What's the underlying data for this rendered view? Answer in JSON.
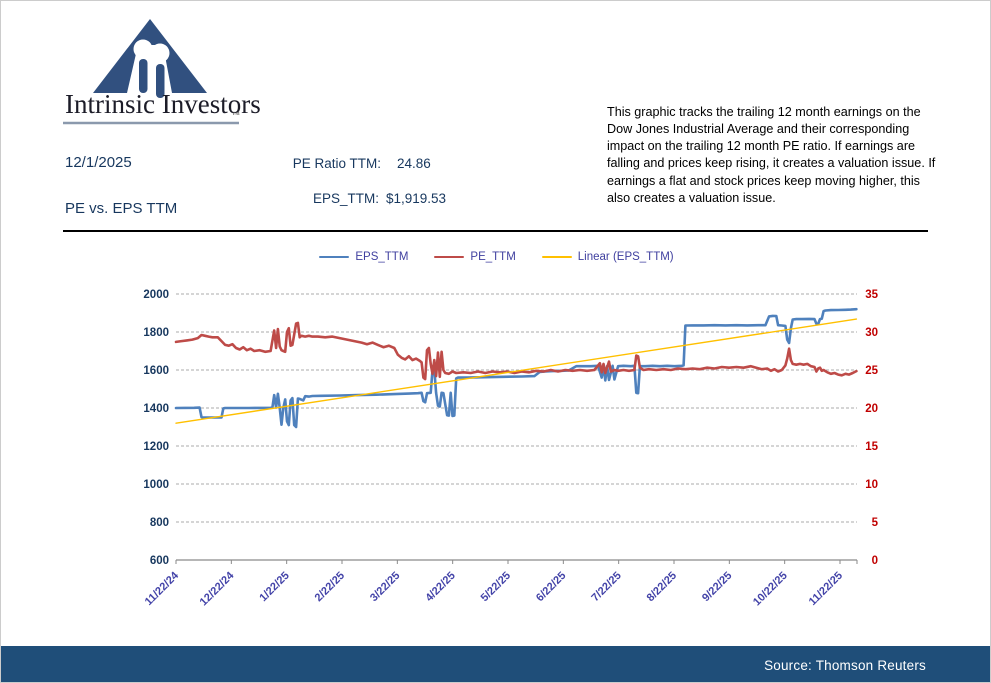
{
  "logo": {
    "brand": "Intrinsic Investors",
    "tm": "™",
    "accent_color": "#31507F"
  },
  "header": {
    "date": "12/1/2025",
    "report_title": "PE vs. EPS TTM",
    "pe_label": "PE Ratio TTM:",
    "pe_value": "24.86",
    "eps_label": "EPS_TTM:",
    "eps_value": "$1,919.53",
    "description": "This graphic tracks the trailing 12 month earnings on the Dow Jones Industrial Average and their corresponding impact on the trailing 12 month PE ratio.  If earnings are falling and prices keep rising, it creates a valuation issue.  If earnings a flat and stock prices keep moving higher, this also creates a valuation issue."
  },
  "footer": {
    "source": "Source: Thomson Reuters"
  },
  "chart_data": {
    "type": "line",
    "title": "PE vs. EPS TTM",
    "x_axis": {
      "unit": "date",
      "tick_labels": [
        "11/22/24",
        "12/22/24",
        "1/22/25",
        "2/22/25",
        "3/22/25",
        "4/22/25",
        "5/22/25",
        "6/22/25",
        "7/22/25",
        "8/22/25",
        "9/22/25",
        "10/22/25",
        "11/22/25"
      ],
      "data_start": "11/22/24",
      "data_end": "12/1/25",
      "total_days": 374
    },
    "y_left": {
      "min": 600,
      "max": 2000,
      "step": 200,
      "color": "#17375E",
      "applies_to": "EPS_TTM"
    },
    "y_right": {
      "min": 0,
      "max": 35,
      "step": 5,
      "color": "#C00000",
      "applies_to": "PE_TTM"
    },
    "grid": {
      "show": true,
      "style": "dashed",
      "color": "#ABABAB"
    },
    "legend_position": "top",
    "series": [
      {
        "name": "EPS_TTM",
        "axis": "left",
        "color": "#4F81BD",
        "stroke_width": 2.6,
        "points": [
          [
            0,
            1400
          ],
          [
            10,
            1401
          ],
          [
            13,
            1402
          ],
          [
            14,
            1352
          ],
          [
            15,
            1350
          ],
          [
            25,
            1350
          ],
          [
            26,
            1398
          ],
          [
            27,
            1400
          ],
          [
            40,
            1400
          ],
          [
            52,
            1401
          ],
          [
            53,
            1402
          ],
          [
            54,
            1468
          ],
          [
            55,
            1402
          ],
          [
            56,
            1475
          ],
          [
            57,
            1402
          ],
          [
            58,
            1312
          ],
          [
            59,
            1400
          ],
          [
            60,
            1445
          ],
          [
            61,
            1330
          ],
          [
            62,
            1310
          ],
          [
            63,
            1440
          ],
          [
            64,
            1452
          ],
          [
            65,
            1310
          ],
          [
            66,
            1300
          ],
          [
            67,
            1450
          ],
          [
            68,
            1448
          ],
          [
            70,
            1440
          ],
          [
            71,
            1462
          ],
          [
            73,
            1460
          ],
          [
            75,
            1463
          ],
          [
            80,
            1464
          ],
          [
            90,
            1466
          ],
          [
            100,
            1468
          ],
          [
            110,
            1470
          ],
          [
            120,
            1473
          ],
          [
            128,
            1476
          ],
          [
            133,
            1478
          ],
          [
            135,
            1480
          ],
          [
            136,
            1436
          ],
          [
            137,
            1430
          ],
          [
            138,
            1478
          ],
          [
            140,
            1480
          ],
          [
            141,
            1598
          ],
          [
            142,
            1602
          ],
          [
            143,
            1480
          ],
          [
            144,
            1412
          ],
          [
            145,
            1408
          ],
          [
            146,
            1480
          ],
          [
            147,
            1478
          ],
          [
            149,
            1362
          ],
          [
            150,
            1360
          ],
          [
            151,
            1480
          ],
          [
            152,
            1358
          ],
          [
            153,
            1360
          ],
          [
            154,
            1556
          ],
          [
            155,
            1560
          ],
          [
            160,
            1560
          ],
          [
            170,
            1562
          ],
          [
            180,
            1564
          ],
          [
            190,
            1566
          ],
          [
            197,
            1568
          ],
          [
            200,
            1590
          ],
          [
            203,
            1592
          ],
          [
            207,
            1594
          ],
          [
            212,
            1596
          ],
          [
            216,
            1598
          ],
          [
            220,
            1620
          ],
          [
            228,
            1620
          ],
          [
            232,
            1622
          ],
          [
            234,
            1560
          ],
          [
            235,
            1622
          ],
          [
            236,
            1545
          ],
          [
            237,
            1620
          ],
          [
            238,
            1548
          ],
          [
            240,
            1622
          ],
          [
            241,
            1550
          ],
          [
            243,
            1620
          ],
          [
            246,
            1622
          ],
          [
            250,
            1620
          ],
          [
            252,
            1622
          ],
          [
            253,
            1480
          ],
          [
            254,
            1478
          ],
          [
            255,
            1620
          ],
          [
            258,
            1620
          ],
          [
            262,
            1622
          ],
          [
            266,
            1620
          ],
          [
            270,
            1622
          ],
          [
            274,
            1620
          ],
          [
            278,
            1622
          ],
          [
            279,
            1624
          ],
          [
            280,
            1834
          ],
          [
            284,
            1835
          ],
          [
            290,
            1835
          ],
          [
            296,
            1836
          ],
          [
            302,
            1835
          ],
          [
            308,
            1836
          ],
          [
            314,
            1835
          ],
          [
            320,
            1836
          ],
          [
            324,
            1836
          ],
          [
            326,
            1882
          ],
          [
            328,
            1885
          ],
          [
            330,
            1884
          ],
          [
            331,
            1836
          ],
          [
            333,
            1834
          ],
          [
            335,
            1832
          ],
          [
            336,
            1760
          ],
          [
            337,
            1742
          ],
          [
            338,
            1820
          ],
          [
            339,
            1866
          ],
          [
            341,
            1868
          ],
          [
            344,
            1868
          ],
          [
            348,
            1869
          ],
          [
            351,
            1868
          ],
          [
            352,
            1843
          ],
          [
            353,
            1842
          ],
          [
            354,
            1868
          ],
          [
            355,
            1870
          ],
          [
            356,
            1910
          ],
          [
            357,
            1913
          ],
          [
            360,
            1915
          ],
          [
            364,
            1916
          ],
          [
            368,
            1917
          ],
          [
            371,
            1918
          ],
          [
            374,
            1920
          ]
        ]
      },
      {
        "name": "PE_TTM",
        "axis": "right",
        "color": "#BE4B48",
        "stroke_width": 2.6,
        "points": [
          [
            0,
            28.7
          ],
          [
            3,
            28.8
          ],
          [
            6,
            28.9
          ],
          [
            9,
            29.0
          ],
          [
            12,
            29.2
          ],
          [
            14,
            29.6
          ],
          [
            16,
            29.5
          ],
          [
            18,
            29.4
          ],
          [
            20,
            29.3
          ],
          [
            23,
            29.3
          ],
          [
            25,
            28.8
          ],
          [
            27,
            28.3
          ],
          [
            29,
            28.2
          ],
          [
            31,
            28.4
          ],
          [
            33,
            27.9
          ],
          [
            35,
            27.7
          ],
          [
            37,
            28.0
          ],
          [
            39,
            27.6
          ],
          [
            41,
            27.8
          ],
          [
            43,
            27.5
          ],
          [
            46,
            27.6
          ],
          [
            49,
            27.4
          ],
          [
            52,
            27.5
          ],
          [
            54,
            30.2
          ],
          [
            55,
            27.9
          ],
          [
            56,
            30.4
          ],
          [
            57,
            28.1
          ],
          [
            58,
            27.6
          ],
          [
            59,
            27.5
          ],
          [
            60,
            27.4
          ],
          [
            61,
            30.0
          ],
          [
            62,
            30.5
          ],
          [
            63,
            28.2
          ],
          [
            64,
            28.3
          ],
          [
            66,
            31.1
          ],
          [
            67,
            31.2
          ],
          [
            68,
            29.3
          ],
          [
            69,
            29.5
          ],
          [
            71,
            29.4
          ],
          [
            73,
            29.5
          ],
          [
            75,
            29.4
          ],
          [
            78,
            29.4
          ],
          [
            82,
            29.3
          ],
          [
            86,
            29.4
          ],
          [
            90,
            29.2
          ],
          [
            94,
            29.0
          ],
          [
            98,
            28.8
          ],
          [
            102,
            28.6
          ],
          [
            105,
            28.4
          ],
          [
            108,
            28.6
          ],
          [
            111,
            28.3
          ],
          [
            114,
            28.0
          ],
          [
            117,
            28.2
          ],
          [
            120,
            27.9
          ],
          [
            122,
            27.0
          ],
          [
            124,
            26.6
          ],
          [
            126,
            26.4
          ],
          [
            128,
            26.8
          ],
          [
            130,
            26.3
          ],
          [
            132,
            26.5
          ],
          [
            134,
            26.2
          ],
          [
            135,
            26.0
          ],
          [
            136,
            24.0
          ],
          [
            137,
            23.8
          ],
          [
            138,
            27.6
          ],
          [
            139,
            27.9
          ],
          [
            140,
            25.8
          ],
          [
            141,
            24.5
          ],
          [
            142,
            26.3
          ],
          [
            143,
            24.2
          ],
          [
            144,
            27.3
          ],
          [
            145,
            24.1
          ],
          [
            146,
            27.4
          ],
          [
            147,
            25.0
          ],
          [
            148,
            24.6
          ],
          [
            150,
            24.5
          ],
          [
            152,
            24.8
          ],
          [
            154,
            24.6
          ],
          [
            158,
            24.7
          ],
          [
            162,
            24.6
          ],
          [
            166,
            24.8
          ],
          [
            170,
            24.6
          ],
          [
            174,
            24.8
          ],
          [
            178,
            24.7
          ],
          [
            182,
            24.8
          ],
          [
            186,
            24.6
          ],
          [
            190,
            24.8
          ],
          [
            194,
            24.7
          ],
          [
            198,
            24.9
          ],
          [
            202,
            24.8
          ],
          [
            206,
            25.0
          ],
          [
            210,
            24.8
          ],
          [
            214,
            25.0
          ],
          [
            218,
            24.9
          ],
          [
            222,
            25.0
          ],
          [
            226,
            24.9
          ],
          [
            230,
            25.0
          ],
          [
            233,
            25.9
          ],
          [
            234,
            24.7
          ],
          [
            235,
            25.8
          ],
          [
            236,
            24.6
          ],
          [
            238,
            26.1
          ],
          [
            239,
            24.8
          ],
          [
            241,
            25.0
          ],
          [
            243,
            24.9
          ],
          [
            246,
            25.0
          ],
          [
            249,
            24.9
          ],
          [
            252,
            25.0
          ],
          [
            253,
            26.9
          ],
          [
            254,
            26.8
          ],
          [
            255,
            25.3
          ],
          [
            257,
            25.0
          ],
          [
            260,
            25.1
          ],
          [
            264,
            25.0
          ],
          [
            268,
            25.1
          ],
          [
            272,
            25.0
          ],
          [
            276,
            25.2
          ],
          [
            280,
            25.1
          ],
          [
            284,
            25.2
          ],
          [
            288,
            25.1
          ],
          [
            292,
            25.3
          ],
          [
            296,
            25.2
          ],
          [
            300,
            25.4
          ],
          [
            304,
            25.3
          ],
          [
            308,
            25.4
          ],
          [
            312,
            25.3
          ],
          [
            316,
            25.5
          ],
          [
            319,
            25.3
          ],
          [
            322,
            25.1
          ],
          [
            325,
            25.2
          ],
          [
            327,
            24.9
          ],
          [
            329,
            25.1
          ],
          [
            331,
            24.8
          ],
          [
            333,
            25.0
          ],
          [
            335,
            25.6
          ],
          [
            336,
            26.5
          ],
          [
            337,
            27.8
          ],
          [
            338,
            26.3
          ],
          [
            339,
            25.8
          ],
          [
            341,
            25.7
          ],
          [
            343,
            25.8
          ],
          [
            345,
            25.7
          ],
          [
            347,
            25.8
          ],
          [
            349,
            25.5
          ],
          [
            351,
            25.4
          ],
          [
            352,
            24.8
          ],
          [
            353,
            25.2
          ],
          [
            354,
            25.3
          ],
          [
            355,
            24.9
          ],
          [
            356,
            25.0
          ],
          [
            358,
            24.7
          ],
          [
            360,
            24.5
          ],
          [
            362,
            24.6
          ],
          [
            364,
            24.4
          ],
          [
            366,
            24.3
          ],
          [
            368,
            24.5
          ],
          [
            370,
            24.4
          ],
          [
            372,
            24.6
          ],
          [
            374,
            24.86
          ]
        ]
      },
      {
        "name": "Linear (EPS_TTM)",
        "axis": "left",
        "color": "#FFC000",
        "stroke_width": 1.4,
        "points": [
          [
            0,
            1320
          ],
          [
            374,
            1868
          ]
        ]
      }
    ]
  }
}
